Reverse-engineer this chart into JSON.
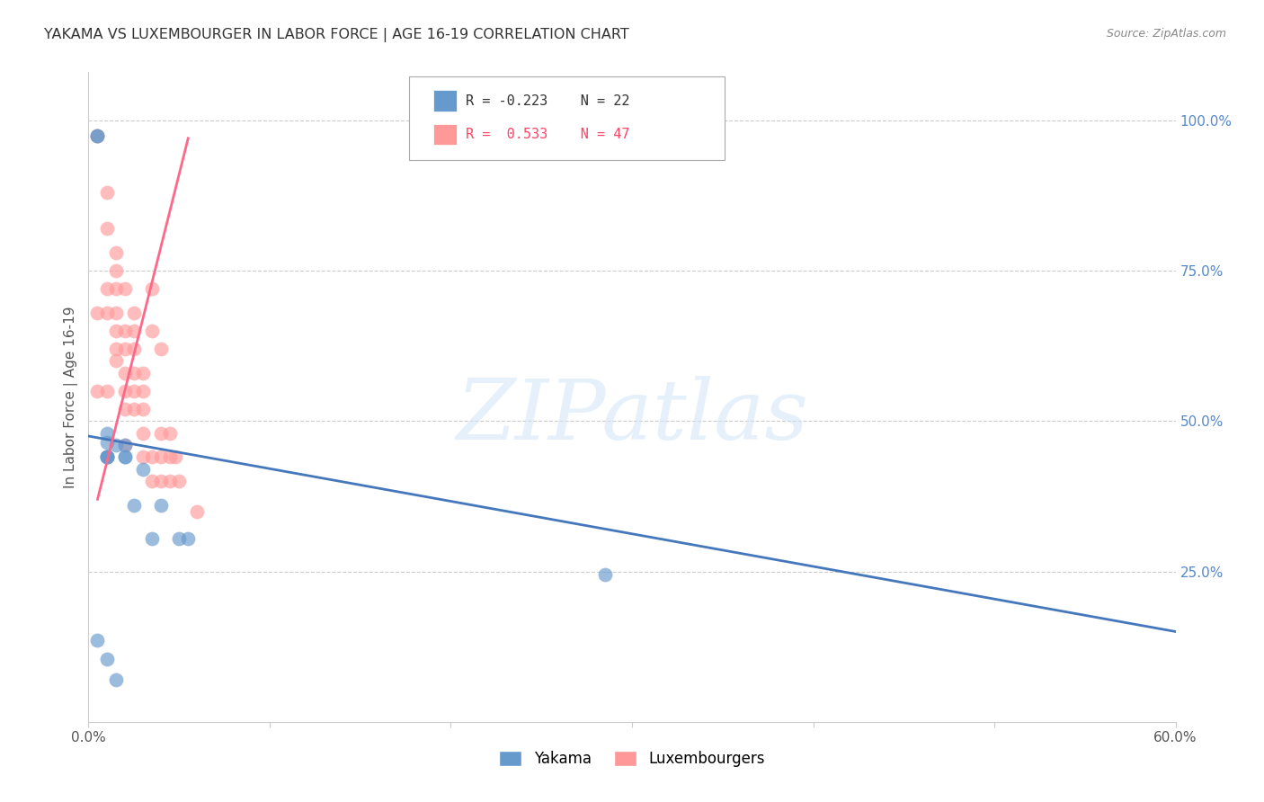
{
  "title": "YAKAMA VS LUXEMBOURGER IN LABOR FORCE | AGE 16-19 CORRELATION CHART",
  "source": "Source: ZipAtlas.com",
  "ylabel": "In Labor Force | Age 16-19",
  "xlim": [
    0.0,
    0.6
  ],
  "ylim": [
    0.0,
    1.08
  ],
  "yticks_right": [
    0.25,
    0.5,
    0.75,
    1.0
  ],
  "yticks_right_labels": [
    "25.0%",
    "50.0%",
    "75.0%",
    "100.0%"
  ],
  "xticks": [
    0.0,
    0.1,
    0.2,
    0.3,
    0.4,
    0.5,
    0.6
  ],
  "watermark": "ZIPatlas",
  "blue_color": "#6699CC",
  "pink_color": "#FF9999",
  "blue_line_color": "#4477BB",
  "pink_line_color": "#FF6688",
  "legend_R_blue": "R = -0.223",
  "legend_N_blue": "N = 22",
  "legend_R_pink": "R =  0.533",
  "legend_N_pink": "N = 47",
  "blue_label": "Yakama",
  "pink_label": "Luxembourgers",
  "blue_points_x": [
    0.005,
    0.005,
    0.01,
    0.015,
    0.02,
    0.01,
    0.01,
    0.01,
    0.01,
    0.01,
    0.02,
    0.02,
    0.025,
    0.03,
    0.035,
    0.04,
    0.05,
    0.055,
    0.285,
    0.005,
    0.01,
    0.015
  ],
  "blue_points_y": [
    0.975,
    0.975,
    0.48,
    0.46,
    0.46,
    0.465,
    0.44,
    0.44,
    0.44,
    0.44,
    0.44,
    0.44,
    0.36,
    0.42,
    0.305,
    0.36,
    0.305,
    0.305,
    0.245,
    0.135,
    0.105,
    0.07
  ],
  "pink_points_x": [
    0.005,
    0.005,
    0.005,
    0.01,
    0.01,
    0.01,
    0.01,
    0.01,
    0.015,
    0.015,
    0.015,
    0.015,
    0.015,
    0.015,
    0.015,
    0.02,
    0.02,
    0.02,
    0.02,
    0.02,
    0.02,
    0.02,
    0.025,
    0.025,
    0.025,
    0.025,
    0.025,
    0.025,
    0.03,
    0.03,
    0.03,
    0.03,
    0.03,
    0.035,
    0.035,
    0.035,
    0.035,
    0.04,
    0.04,
    0.04,
    0.04,
    0.045,
    0.045,
    0.045,
    0.048,
    0.05,
    0.06
  ],
  "pink_points_y": [
    0.975,
    0.68,
    0.55,
    0.88,
    0.82,
    0.72,
    0.68,
    0.55,
    0.78,
    0.75,
    0.72,
    0.68,
    0.65,
    0.62,
    0.6,
    0.72,
    0.65,
    0.62,
    0.58,
    0.55,
    0.52,
    0.46,
    0.68,
    0.65,
    0.62,
    0.58,
    0.55,
    0.52,
    0.58,
    0.55,
    0.52,
    0.48,
    0.44,
    0.72,
    0.65,
    0.44,
    0.4,
    0.62,
    0.48,
    0.44,
    0.4,
    0.48,
    0.44,
    0.4,
    0.44,
    0.4,
    0.35
  ],
  "blue_trendline_x": [
    0.0,
    0.6
  ],
  "blue_trendline_y": [
    0.475,
    0.15
  ],
  "pink_trendline_x": [
    0.005,
    0.055
  ],
  "pink_trendline_y": [
    0.37,
    0.97
  ],
  "background_color": "#FFFFFF",
  "grid_color": "#CCCCCC",
  "title_color": "#333333",
  "right_axis_color": "#5588CC"
}
